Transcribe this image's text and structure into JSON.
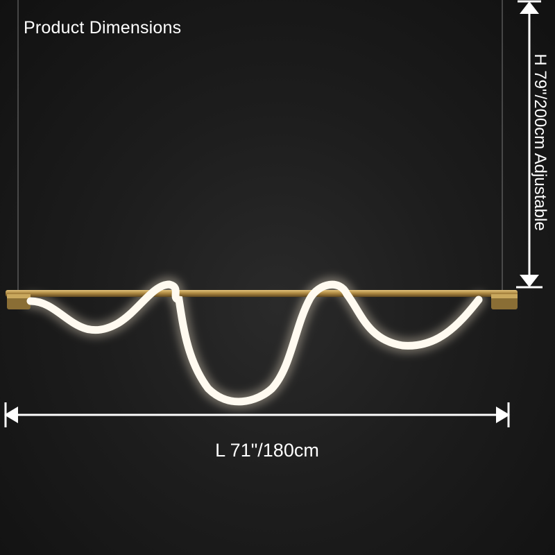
{
  "heading": "Product Dimensions",
  "length_label": "L 71\"/180cm",
  "height_label": "H 79\"/200cm Adjustable",
  "colors": {
    "background": "#1d1d1d",
    "text": "#ffffff",
    "brass": "#b8964a",
    "led_glow": "#fff6e6"
  }
}
